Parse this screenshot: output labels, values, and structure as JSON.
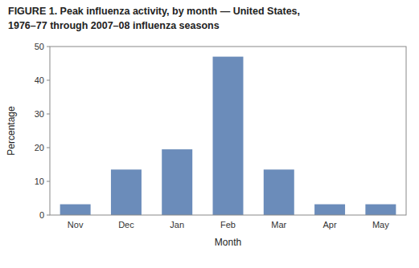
{
  "chart_data": {
    "type": "bar",
    "title": "FIGURE 1. Peak influenza activity, by month — United States,",
    "subtitle": "1976–77 through 2007–08 influenza seasons",
    "categories": [
      "Nov",
      "Dec",
      "Jan",
      "Feb",
      "Mar",
      "Apr",
      "May"
    ],
    "values": [
      3.2,
      13.5,
      19.5,
      47.0,
      13.5,
      3.2,
      3.2
    ],
    "color": "#6b8cba",
    "xlabel": "Month",
    "ylabel": "Percentage",
    "ylim": [
      0,
      50
    ],
    "yticks": [
      0,
      10,
      20,
      30,
      40,
      50
    ],
    "grid": false
  }
}
